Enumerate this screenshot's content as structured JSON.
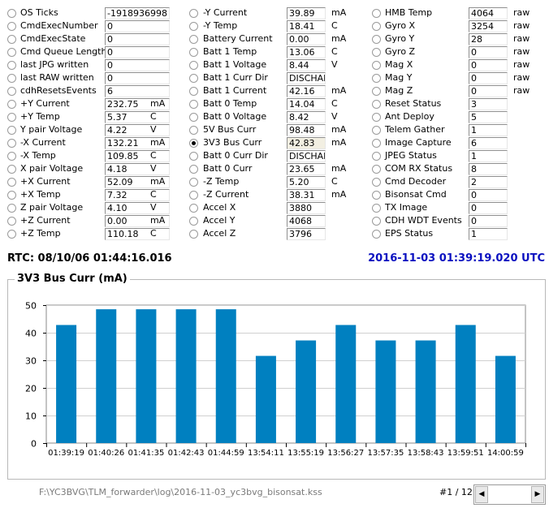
{
  "columns": [
    {
      "items": [
        {
          "label": "OS Ticks",
          "value": "-1918936998",
          "unit": ""
        },
        {
          "label": "CmdExecNumber",
          "value": "0",
          "unit": ""
        },
        {
          "label": "CmdExecState",
          "value": "0",
          "unit": ""
        },
        {
          "label": "Cmd Queue Length",
          "value": "0",
          "unit": ""
        },
        {
          "label": "last JPG written",
          "value": "0",
          "unit": ""
        },
        {
          "label": "last RAW written",
          "value": "0",
          "unit": ""
        },
        {
          "label": "cdhResetsEvents",
          "value": "6",
          "unit": ""
        },
        {
          "label": "+Y Current",
          "value": "232.75",
          "unit": "mA"
        },
        {
          "label": "+Y Temp",
          "value": "5.37",
          "unit": "C"
        },
        {
          "label": "Y pair Voltage",
          "value": "4.22",
          "unit": "V"
        },
        {
          "label": "-X Current",
          "value": "132.21",
          "unit": "mA"
        },
        {
          "label": "-X Temp",
          "value": "109.85",
          "unit": "C"
        },
        {
          "label": "X pair Voltage",
          "value": "4.18",
          "unit": "V"
        },
        {
          "label": "+X Current",
          "value": "52.09",
          "unit": "mA"
        },
        {
          "label": "+X Temp",
          "value": "7.32",
          "unit": "C"
        },
        {
          "label": "Z pair Voltage",
          "value": "4.10",
          "unit": "V"
        },
        {
          "label": "+Z Current",
          "value": "0.00",
          "unit": "mA"
        },
        {
          "label": "+Z Temp",
          "value": "110.18",
          "unit": "C"
        }
      ]
    },
    {
      "items": [
        {
          "label": "-Y Current",
          "value": "39.89",
          "unit": "mA"
        },
        {
          "label": "-Y Temp",
          "value": "18.41",
          "unit": "C"
        },
        {
          "label": "Battery Current",
          "value": "0.00",
          "unit": "mA"
        },
        {
          "label": "Batt 1 Temp",
          "value": "13.06",
          "unit": "C"
        },
        {
          "label": "Batt 1 Voltage",
          "value": "8.44",
          "unit": "V"
        },
        {
          "label": "Batt 1 Curr Dir",
          "value": "DISCHAR",
          "unit": ""
        },
        {
          "label": "Batt 1 Current",
          "value": "42.16",
          "unit": "mA"
        },
        {
          "label": "Batt 0 Temp",
          "value": "14.04",
          "unit": "C"
        },
        {
          "label": "Batt 0 Voltage",
          "value": "8.42",
          "unit": "V"
        },
        {
          "label": "5V Bus Curr",
          "value": "98.48",
          "unit": "mA"
        },
        {
          "label": "3V3 Bus Curr",
          "value": "42.83",
          "unit": "mA",
          "selected": true
        },
        {
          "label": "Batt 0 Curr Dir",
          "value": "DISCHAR",
          "unit": ""
        },
        {
          "label": "Batt 0 Curr",
          "value": "23.65",
          "unit": "mA"
        },
        {
          "label": "-Z Temp",
          "value": "5.20",
          "unit": "C"
        },
        {
          "label": "-Z Current",
          "value": "38.31",
          "unit": "mA"
        },
        {
          "label": "Accel X",
          "value": "3880",
          "unit": ""
        },
        {
          "label": "Accel Y",
          "value": "4068",
          "unit": ""
        },
        {
          "label": "Accel Z",
          "value": "3796",
          "unit": ""
        }
      ]
    },
    {
      "items": [
        {
          "label": "HMB Temp",
          "value": "4064",
          "unit": "raw"
        },
        {
          "label": "Gyro X",
          "value": "3254",
          "unit": "raw"
        },
        {
          "label": "Gyro Y",
          "value": "28",
          "unit": "raw"
        },
        {
          "label": "Gyro Z",
          "value": "0",
          "unit": "raw"
        },
        {
          "label": "Mag X",
          "value": "0",
          "unit": "raw"
        },
        {
          "label": "Mag Y",
          "value": "0",
          "unit": "raw"
        },
        {
          "label": "Mag Z",
          "value": "0",
          "unit": "raw"
        },
        {
          "label": "Reset Status",
          "value": "3",
          "unit": ""
        },
        {
          "label": "Ant Deploy",
          "value": "5",
          "unit": ""
        },
        {
          "label": "Telem Gather",
          "value": "1",
          "unit": ""
        },
        {
          "label": "Image Capture",
          "value": "6",
          "unit": ""
        },
        {
          "label": "JPEG Status",
          "value": "1",
          "unit": ""
        },
        {
          "label": "COM RX Status",
          "value": "8",
          "unit": ""
        },
        {
          "label": "Cmd Decoder",
          "value": "2",
          "unit": ""
        },
        {
          "label": "Bisonsat Cmd",
          "value": "0",
          "unit": ""
        },
        {
          "label": "TX Image",
          "value": "0",
          "unit": ""
        },
        {
          "label": "CDH WDT Events",
          "value": "0",
          "unit": ""
        },
        {
          "label": "EPS Status",
          "value": "1",
          "unit": ""
        }
      ]
    }
  ],
  "rtc": "RTC: 08/10/06 01:44:16.016",
  "utc": "2016-11-03 01:39:19.020 UTC",
  "chart_group_title": "3V3 Bus Curr (mA)",
  "chart_data": {
    "type": "bar",
    "categories": [
      "01:39:19",
      "01:40:26",
      "01:41:35",
      "01:42:43",
      "01:44:59",
      "13:54:11",
      "13:55:19",
      "13:56:27",
      "13:57:35",
      "13:58:43",
      "13:59:51",
      "14:00:59"
    ],
    "values": [
      42.8,
      48.5,
      48.5,
      48.5,
      48.5,
      31.6,
      37.2,
      42.8,
      37.2,
      37.2,
      42.8,
      31.6
    ],
    "yticks": [
      0,
      10,
      20,
      30,
      40,
      50
    ],
    "ylim": [
      0,
      50
    ],
    "grid": true,
    "bar_color": "#0080c0",
    "title": "",
    "xlabel": "",
    "ylabel": ""
  },
  "footer": {
    "path": "F:\\YC3BVG\\TLM_forwarder\\log\\2016-11-03_yc3bvg_bisonsat.kss",
    "page": "#1 / 12",
    "scroll_left_icon": "triangle-left",
    "scroll_right_icon": "triangle-right"
  }
}
